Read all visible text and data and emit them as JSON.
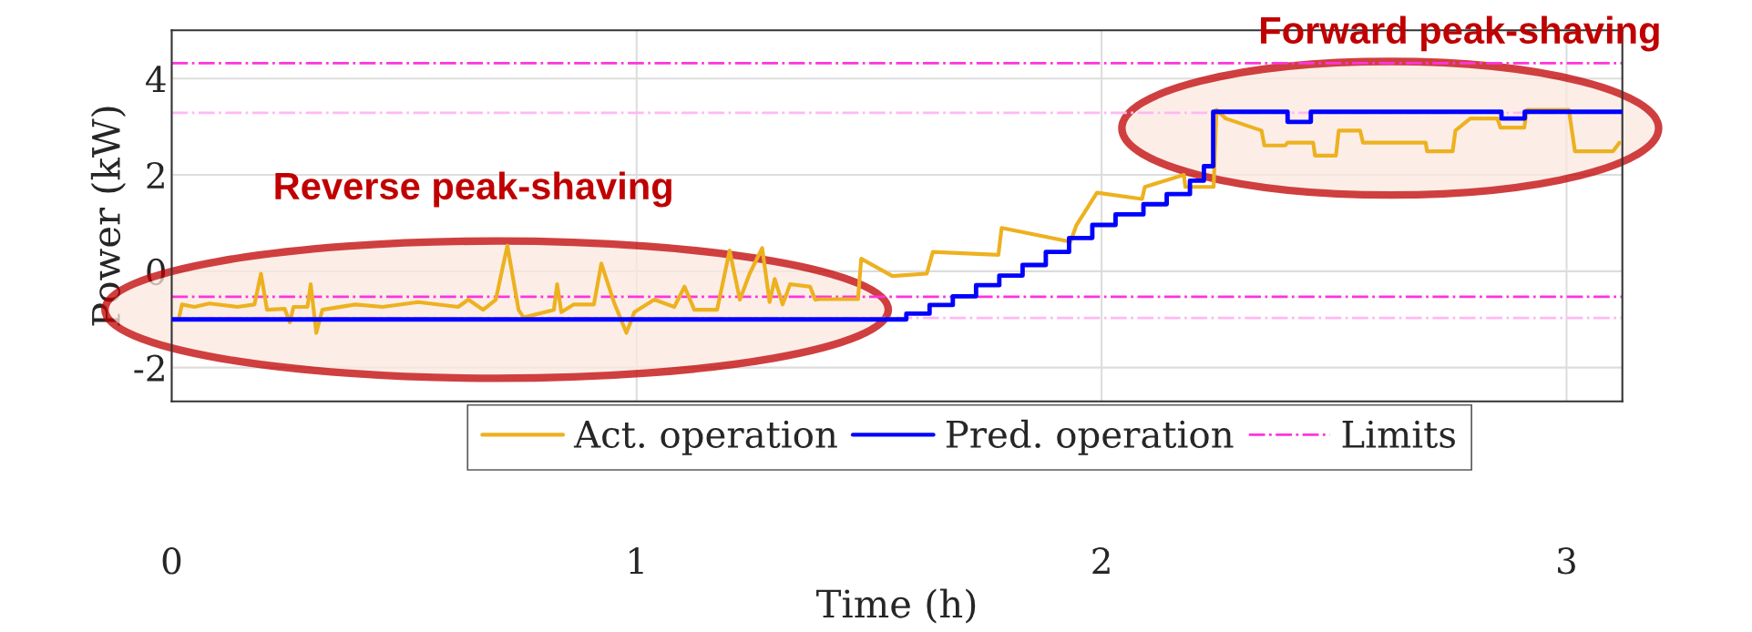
{
  "chart_data": {
    "type": "line",
    "xlabel": "Time (h)",
    "ylabel": "Power (kW)",
    "xlim": [
      0,
      3.12
    ],
    "ylim": [
      -2.7,
      5.0
    ],
    "xticks": [
      0,
      1,
      2,
      3
    ],
    "yticks": [
      -2,
      0,
      2,
      4
    ],
    "grid": true,
    "legend": "bottom",
    "series": [
      {
        "name": "Act. operation",
        "color": "#edb120",
        "x": [
          0.016,
          0.022,
          0.049,
          0.081,
          0.141,
          0.178,
          0.192,
          0.205,
          0.243,
          0.254,
          0.262,
          0.292,
          0.299,
          0.311,
          0.324,
          0.395,
          0.454,
          0.53,
          0.616,
          0.638,
          0.67,
          0.697,
          0.722,
          0.746,
          0.757,
          0.822,
          0.829,
          0.838,
          0.865,
          0.908,
          0.924,
          0.951,
          0.978,
          0.995,
          1.038,
          1.081,
          1.103,
          1.124,
          1.173,
          1.2,
          1.222,
          1.243,
          1.27,
          1.286,
          1.297,
          1.314,
          1.33,
          1.373,
          1.384,
          1.393,
          1.476,
          1.483,
          1.55,
          1.624,
          1.637,
          1.778,
          1.785,
          1.933,
          1.946,
          1.99,
          2.087,
          2.093,
          2.177,
          2.18,
          2.241,
          2.247,
          2.267,
          2.344,
          2.35,
          2.395,
          2.4,
          2.455,
          2.459,
          2.504,
          2.51,
          2.556,
          2.562,
          2.697,
          2.7,
          2.755,
          2.761,
          2.793,
          2.851,
          2.858,
          2.909,
          2.915,
          3.005,
          3.018,
          3.1,
          3.114
        ],
        "values": [
          -0.96,
          -0.69,
          -0.74,
          -0.67,
          -0.74,
          -0.69,
          -0.05,
          -0.8,
          -0.78,
          -1.06,
          -0.74,
          -0.74,
          -0.27,
          -1.28,
          -0.8,
          -0.69,
          -0.74,
          -0.64,
          -0.74,
          -0.59,
          -0.8,
          -0.59,
          0.53,
          -0.8,
          -0.96,
          -0.8,
          -0.27,
          -0.85,
          -0.69,
          -0.69,
          0.16,
          -0.64,
          -1.28,
          -0.85,
          -0.59,
          -0.74,
          -0.32,
          -0.8,
          -0.8,
          0.43,
          -0.59,
          -0.05,
          0.48,
          -0.64,
          -0.16,
          -0.69,
          -0.27,
          -0.32,
          -0.59,
          -0.58,
          -0.58,
          0.26,
          -0.1,
          -0.05,
          0.4,
          0.34,
          0.9,
          0.61,
          0.96,
          1.63,
          1.5,
          1.75,
          2.0,
          1.75,
          1.75,
          3.35,
          3.17,
          2.92,
          2.61,
          2.61,
          2.67,
          2.67,
          2.4,
          2.4,
          2.92,
          2.92,
          2.67,
          2.67,
          2.49,
          2.49,
          2.92,
          3.17,
          3.17,
          2.98,
          2.98,
          3.35,
          3.35,
          2.49,
          2.49,
          2.67
        ]
      },
      {
        "name": "Pred. operation",
        "color": "#0000ff",
        "type": "step",
        "x": [
          0.0,
          1.58,
          1.63,
          1.68,
          1.73,
          1.78,
          1.83,
          1.88,
          1.93,
          1.98,
          2.03,
          2.09,
          2.14,
          2.19,
          2.22,
          2.24,
          2.4,
          2.45,
          2.86,
          2.91,
          3.12
        ],
        "values": [
          -1.0,
          -0.88,
          -0.7,
          -0.52,
          -0.29,
          -0.09,
          0.13,
          0.4,
          0.69,
          0.96,
          1.18,
          1.39,
          1.6,
          1.88,
          2.18,
          3.31,
          3.1,
          3.31,
          3.17,
          3.31,
          3.31
        ]
      }
    ],
    "ref_lines": [
      {
        "axis": "y",
        "value": 4.32,
        "label": "Limits",
        "color": "#ff33dd",
        "line_style": "dashdot"
      },
      {
        "axis": "y",
        "value": -0.53,
        "color": "#ff33dd",
        "line_style": "dashdot"
      },
      {
        "axis": "y",
        "value": 3.29,
        "color": "#ffb8f2",
        "line_style": "dashdot"
      },
      {
        "axis": "y",
        "value": -0.97,
        "color": "#ffb8f2",
        "line_style": "dashdot"
      }
    ],
    "annotations": [
      "Reverse peak-shaving",
      "Forward peak-shaving"
    ]
  }
}
